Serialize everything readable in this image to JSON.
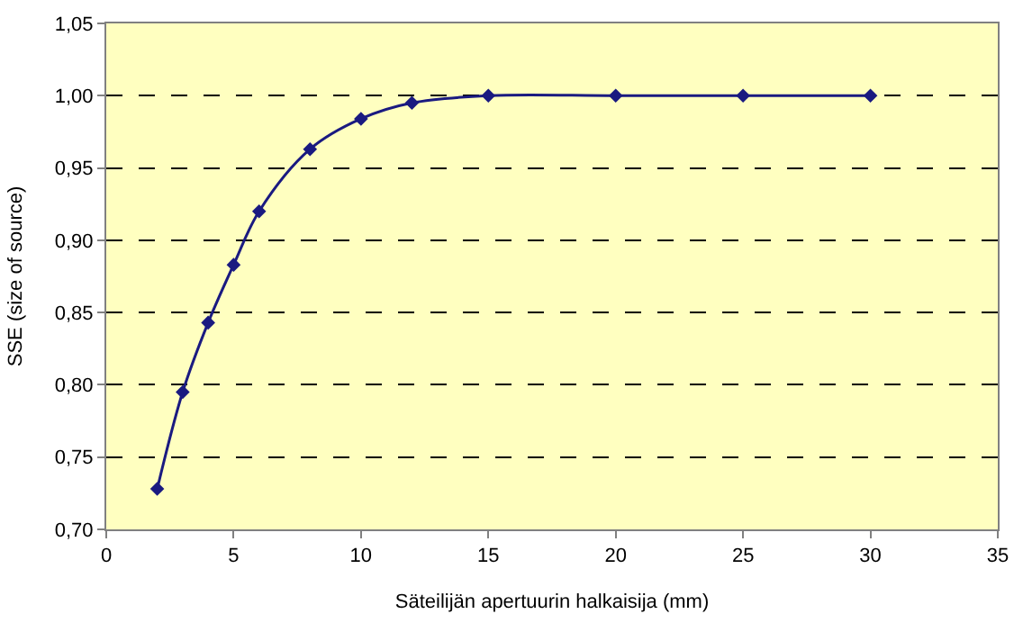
{
  "chart_data": {
    "type": "line",
    "xlabel": "Säteilijän apertuurin halkaisija (mm)",
    "ylabel": "SSE (size of source)",
    "x": [
      2,
      3,
      4,
      5,
      6,
      8,
      10,
      12,
      15,
      20,
      25,
      30
    ],
    "series": [
      {
        "color": "#1a1a80",
        "values": [
          0.728,
          0.795,
          0.843,
          0.883,
          0.92,
          0.963,
          0.984,
          0.995,
          1.0,
          1.0,
          1.0,
          1.0
        ]
      }
    ],
    "xlim": [
      0,
      35
    ],
    "xticks": [
      0,
      5,
      10,
      15,
      20,
      25,
      30,
      35
    ],
    "ylim": [
      0.7,
      1.05
    ],
    "yticks": [
      {
        "value": 0.7,
        "label": "0,70"
      },
      {
        "value": 0.75,
        "label": "0,75"
      },
      {
        "value": 0.8,
        "label": "0,80"
      },
      {
        "value": 0.85,
        "label": "0,85"
      },
      {
        "value": 0.9,
        "label": "0,90"
      },
      {
        "value": 0.95,
        "label": "0,95"
      },
      {
        "value": 1.0,
        "label": "1,00"
      },
      {
        "value": 1.05,
        "label": "1,05"
      }
    ],
    "grid": "y",
    "marker": "diamond",
    "line_style": "solid",
    "legend": false
  }
}
